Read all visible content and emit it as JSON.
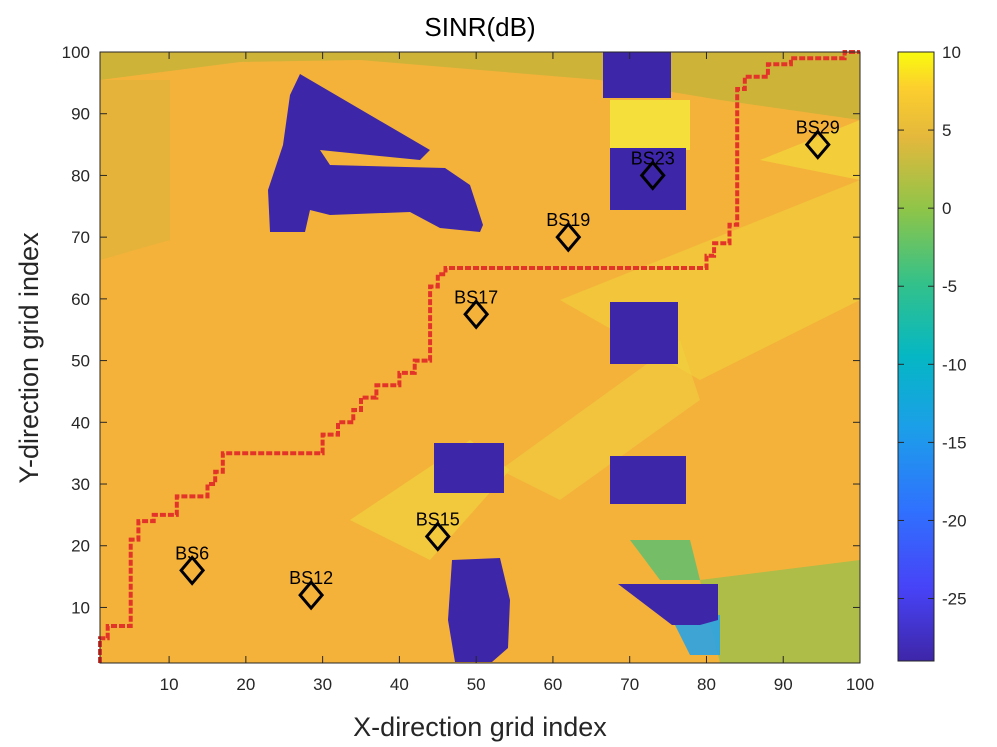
{
  "chart_data": {
    "type": "heatmap",
    "title": "SINR(dB)",
    "xlabel": "X-direction grid index",
    "ylabel": "Y-direction grid index",
    "xlim": [
      1,
      100
    ],
    "ylim": [
      1,
      100
    ],
    "x_ticks": [
      "10",
      "20",
      "30",
      "40",
      "50",
      "60",
      "70",
      "80",
      "90",
      "100"
    ],
    "y_ticks": [
      "10",
      "20",
      "30",
      "40",
      "50",
      "60",
      "70",
      "80",
      "90",
      "100"
    ],
    "colorbar": {
      "min": -29,
      "max": 10,
      "ticks": [
        "10",
        "5",
        "0",
        "-5",
        "-10",
        "-15",
        "-20",
        "-25"
      ],
      "colormap": "parula",
      "location": "right"
    },
    "base_stations": [
      {
        "name": "BS6",
        "x": 13,
        "y": 16
      },
      {
        "name": "BS12",
        "x": 28.5,
        "y": 12
      },
      {
        "name": "BS15",
        "x": 45,
        "y": 21.5
      },
      {
        "name": "BS17",
        "x": 50,
        "y": 57.5
      },
      {
        "name": "BS19",
        "x": 62,
        "y": 70
      },
      {
        "name": "BS23",
        "x": 73,
        "y": 80
      },
      {
        "name": "BS29",
        "x": 94.5,
        "y": 85
      }
    ],
    "route": [
      [
        1,
        1
      ],
      [
        1,
        5
      ],
      [
        2,
        5
      ],
      [
        2,
        7
      ],
      [
        4,
        7
      ],
      [
        5,
        7
      ],
      [
        5,
        21
      ],
      [
        6,
        21
      ],
      [
        6,
        24
      ],
      [
        8,
        24
      ],
      [
        8,
        25
      ],
      [
        11,
        25
      ],
      [
        11,
        28
      ],
      [
        13,
        28
      ],
      [
        15,
        28
      ],
      [
        15,
        30
      ],
      [
        16,
        30
      ],
      [
        16,
        32
      ],
      [
        17,
        32
      ],
      [
        17,
        35
      ],
      [
        24,
        35
      ],
      [
        30,
        35
      ],
      [
        30,
        38
      ],
      [
        32,
        38
      ],
      [
        32,
        40
      ],
      [
        34,
        40
      ],
      [
        34,
        42
      ],
      [
        35,
        42
      ],
      [
        35,
        44
      ],
      [
        37,
        44
      ],
      [
        37,
        46
      ],
      [
        40,
        46
      ],
      [
        40,
        48
      ],
      [
        42,
        48
      ],
      [
        42,
        50
      ],
      [
        44,
        50
      ],
      [
        44,
        58
      ],
      [
        44,
        62
      ],
      [
        45,
        62
      ],
      [
        45,
        64
      ],
      [
        46,
        64
      ],
      [
        46,
        65
      ],
      [
        56,
        65
      ],
      [
        70,
        65
      ],
      [
        80,
        65
      ],
      [
        80,
        67
      ],
      [
        81,
        67
      ],
      [
        81,
        69
      ],
      [
        83,
        69
      ],
      [
        83,
        72
      ],
      [
        84,
        72
      ],
      [
        84,
        88
      ],
      [
        84,
        94
      ],
      [
        85,
        94
      ],
      [
        85,
        96
      ],
      [
        88,
        96
      ],
      [
        88,
        98
      ],
      [
        91,
        98
      ],
      [
        91,
        99
      ],
      [
        98,
        99
      ],
      [
        98,
        100
      ],
      [
        100,
        100
      ]
    ],
    "coverage_holes": [
      {
        "region": "upper-left triangle",
        "x": [
          22,
          50
        ],
        "y": [
          70.5,
          95
        ]
      },
      {
        "region": "top-center",
        "x": [
          68,
          77
        ],
        "y": [
          92,
          100
        ]
      },
      {
        "region": "center-right upper",
        "x": [
          68,
          78
        ],
        "y": [
          74,
          84
        ]
      },
      {
        "region": "center-right middle",
        "x": [
          68,
          78
        ],
        "y": [
          48,
          60
        ]
      },
      {
        "region": "center",
        "x": [
          46,
          54
        ],
        "y": [
          29,
          37
        ]
      },
      {
        "region": "center-right lower",
        "x": [
          68,
          78
        ],
        "y": [
          27,
          35
        ]
      },
      {
        "region": "bottom-center",
        "x": [
          46,
          54
        ],
        "y": [
          1,
          18
        ]
      },
      {
        "region": "bottom-right",
        "x": [
          70,
          82
        ],
        "y": [
          1,
          13
        ]
      }
    ],
    "grid": false
  }
}
